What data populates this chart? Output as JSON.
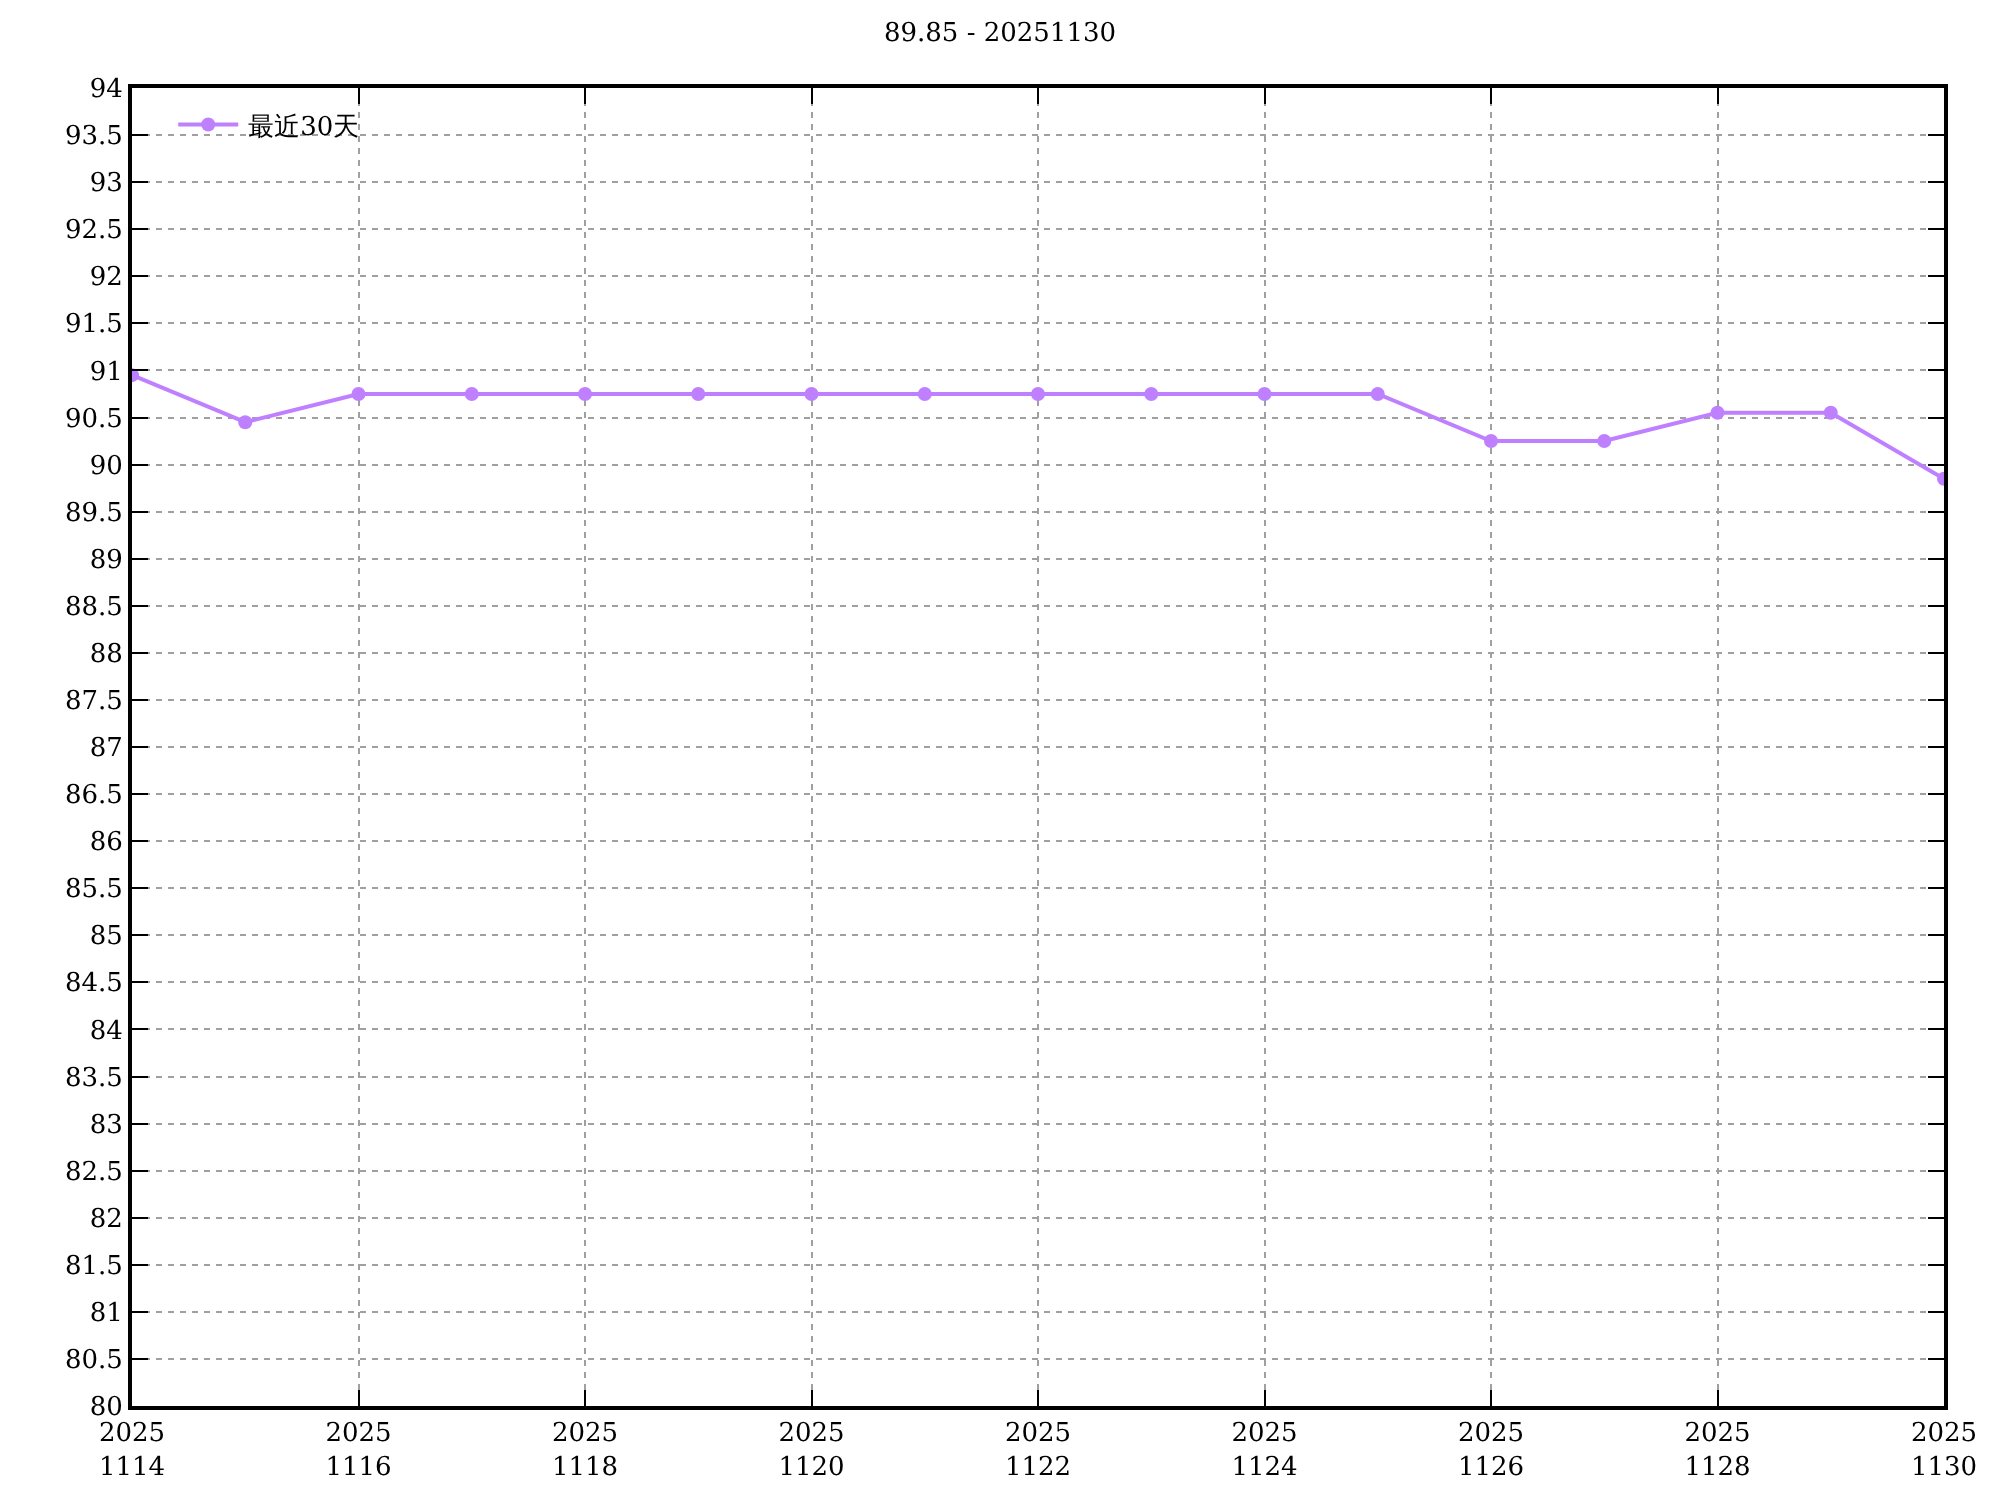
{
  "chart_data": {
    "type": "line",
    "title": "89.85 - 20251130",
    "x": [
      "2025-11-14",
      "2025-11-15",
      "2025-11-16",
      "2025-11-17",
      "2025-11-18",
      "2025-11-19",
      "2025-11-20",
      "2025-11-21",
      "2025-11-22",
      "2025-11-23",
      "2025-11-24",
      "2025-11-25",
      "2025-11-26",
      "2025-11-27",
      "2025-11-28",
      "2025-11-29",
      "2025-11-30"
    ],
    "series": [
      {
        "name": "最近30天",
        "color": "#bf80ff",
        "values": [
          90.95,
          90.45,
          90.75,
          90.75,
          90.75,
          90.75,
          90.75,
          90.75,
          90.75,
          90.75,
          90.75,
          90.75,
          90.25,
          90.25,
          90.55,
          90.55,
          89.85
        ]
      }
    ],
    "xlim": [
      "2025-11-14",
      "2025-11-30"
    ],
    "xticks": [
      {
        "value": "2025-11-14",
        "label": "2025\n1114"
      },
      {
        "value": "2025-11-16",
        "label": "2025\n1116"
      },
      {
        "value": "2025-11-18",
        "label": "2025\n1118"
      },
      {
        "value": "2025-11-20",
        "label": "2025\n1120"
      },
      {
        "value": "2025-11-22",
        "label": "2025\n1122"
      },
      {
        "value": "2025-11-24",
        "label": "2025\n1124"
      },
      {
        "value": "2025-11-26",
        "label": "2025\n1126"
      },
      {
        "value": "2025-11-28",
        "label": "2025\n1128"
      },
      {
        "value": "2025-11-30",
        "label": "2025\n1130"
      }
    ],
    "ylim": [
      80,
      94
    ],
    "yticks": [
      80,
      80.5,
      81,
      81.5,
      82,
      82.5,
      83,
      83.5,
      84,
      84.5,
      85,
      85.5,
      86,
      86.5,
      87,
      87.5,
      88,
      88.5,
      89,
      89.5,
      90,
      90.5,
      91,
      91.5,
      92,
      92.5,
      93,
      93.5,
      94
    ],
    "grid": true,
    "legend": "top left",
    "marker": "circle",
    "line_style": "solid"
  }
}
